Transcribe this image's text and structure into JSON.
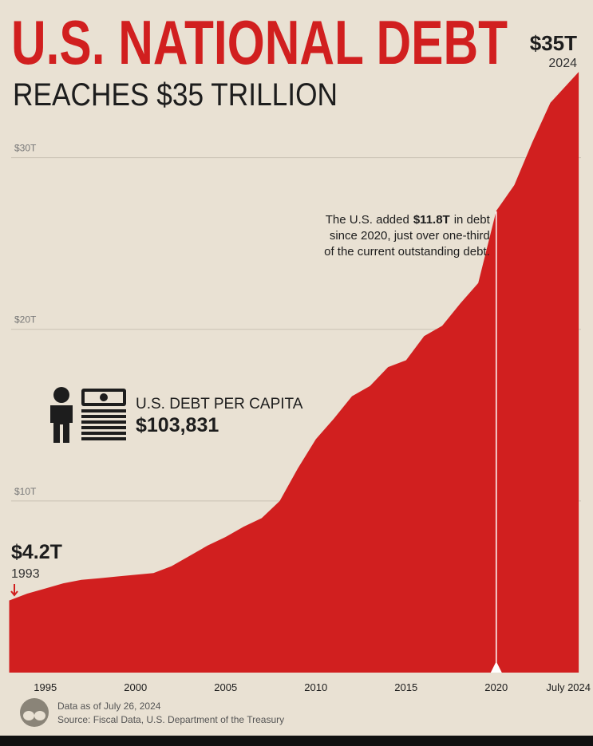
{
  "chart_data": {
    "type": "area",
    "title": "U.S. NATIONAL DEBT",
    "subtitle": "REACHES $35 TRILLION",
    "x": [
      1993,
      1994,
      1995,
      1996,
      1997,
      1998,
      1999,
      2000,
      2001,
      2002,
      2003,
      2004,
      2005,
      2006,
      2007,
      2008,
      2009,
      2010,
      2011,
      2012,
      2013,
      2014,
      2015,
      2016,
      2017,
      2018,
      2019,
      2020,
      2021,
      2022,
      2023,
      2024.57
    ],
    "values": [
      4.2,
      4.6,
      4.9,
      5.2,
      5.4,
      5.5,
      5.6,
      5.7,
      5.8,
      6.2,
      6.8,
      7.4,
      7.9,
      8.5,
      9.0,
      10.0,
      11.9,
      13.6,
      14.8,
      16.1,
      16.7,
      17.8,
      18.2,
      19.6,
      20.2,
      21.5,
      22.7,
      26.9,
      28.4,
      30.9,
      33.2,
      35.0
    ],
    "color": "#d11f1f",
    "xlim": [
      1992.8,
      2024.7
    ],
    "ylim": [
      0,
      39
    ],
    "xticks": [
      1995,
      2000,
      2005,
      2010,
      2015,
      2020,
      {
        "value": 2024.57,
        "label": "July 2024"
      }
    ],
    "yticks": [
      {
        "value": 10,
        "label": "$10T"
      },
      {
        "value": 20,
        "label": "$20T"
      },
      {
        "value": 30,
        "label": "$30T"
      }
    ],
    "grid": true,
    "start_callout": {
      "amount": "$4.2T",
      "year": "1993"
    },
    "end_callout": {
      "amount": "$35T",
      "year": "2024"
    },
    "annotation": {
      "x": 2020,
      "lead": "The U.S. added",
      "amount": "$11.8T",
      "lines": [
        "in debt",
        "since 2020, just over one-third",
        "of the current outstanding debt."
      ]
    },
    "per_capita": {
      "label": "U.S. DEBT PER CAPITA",
      "amount": "$103,831"
    },
    "footer": [
      "Data as of July 26, 2024",
      "Source: Fiscal Data, U.S. Department of the Treasury"
    ]
  }
}
